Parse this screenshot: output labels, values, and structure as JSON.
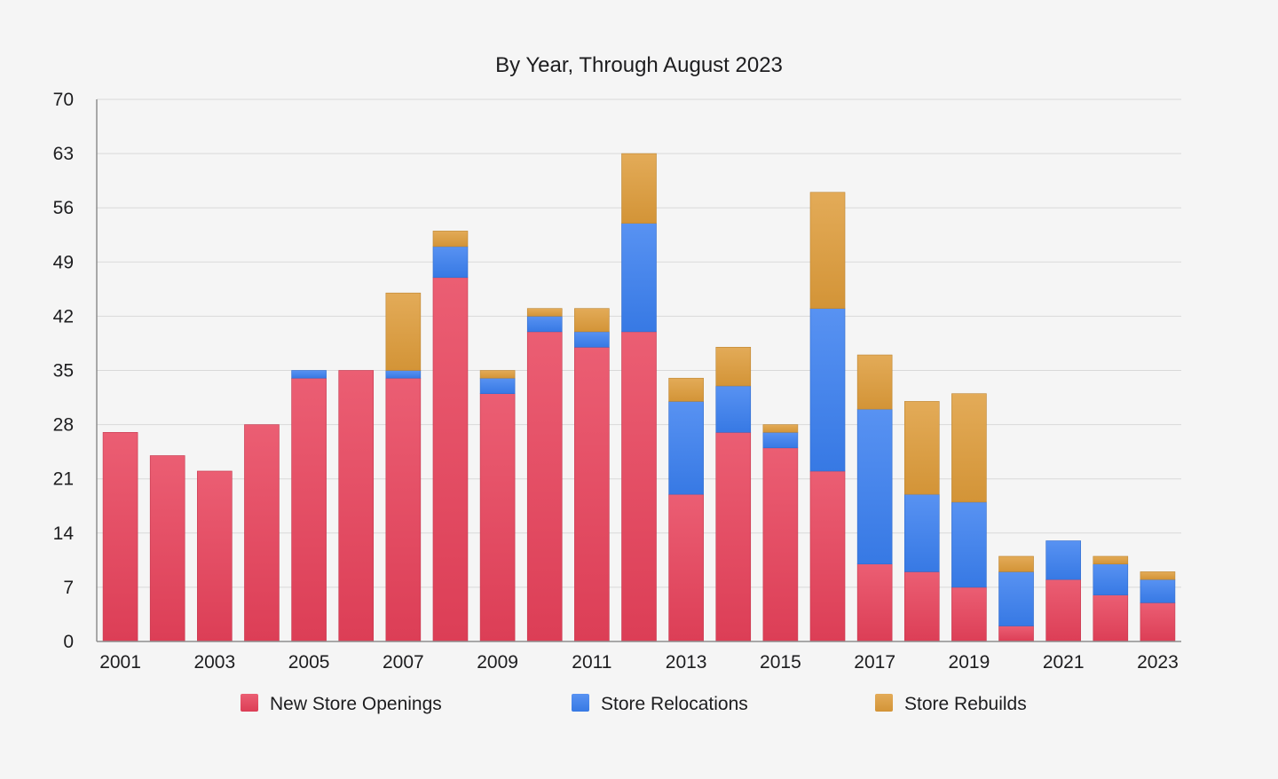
{
  "chart_data": {
    "type": "bar",
    "stacked": true,
    "title": "By Year, Through August 2023",
    "xlabel": "",
    "ylabel": "",
    "ylim": [
      0,
      70
    ],
    "y_ticks": [
      0,
      7,
      14,
      21,
      28,
      35,
      42,
      49,
      56,
      63,
      70
    ],
    "categories": [
      "2001",
      "2002",
      "2003",
      "2004",
      "2005",
      "2006",
      "2007",
      "2008",
      "2009",
      "2010",
      "2011",
      "2012",
      "2013",
      "2014",
      "2015",
      "2016",
      "2017",
      "2018",
      "2019",
      "2020",
      "2021",
      "2022",
      "2023"
    ],
    "x_tick_labels": [
      "2001",
      "",
      "2003",
      "",
      "2005",
      "",
      "2007",
      "",
      "2009",
      "",
      "2011",
      "",
      "2013",
      "",
      "2015",
      "",
      "2017",
      "",
      "2019",
      "",
      "2021",
      "",
      "2023"
    ],
    "grid": true,
    "legend_position": "bottom",
    "series": [
      {
        "name": "New Store Openings",
        "color": "#e8415a",
        "values": [
          27,
          24,
          22,
          28,
          34,
          35,
          34,
          47,
          32,
          40,
          38,
          40,
          19,
          27,
          25,
          22,
          10,
          9,
          7,
          2,
          8,
          6,
          5
        ]
      },
      {
        "name": "Store Relocations",
        "color": "#3a7ff0",
        "values": [
          0,
          0,
          0,
          0,
          1,
          0,
          1,
          4,
          2,
          2,
          2,
          14,
          12,
          6,
          2,
          21,
          20,
          10,
          11,
          7,
          5,
          4,
          3
        ]
      },
      {
        "name": "Store Rebuilds",
        "color": "#de9c3a",
        "values": [
          0,
          0,
          0,
          0,
          0,
          0,
          10,
          2,
          1,
          1,
          3,
          9,
          3,
          5,
          1,
          15,
          7,
          12,
          14,
          2,
          0,
          1,
          1
        ]
      }
    ]
  }
}
